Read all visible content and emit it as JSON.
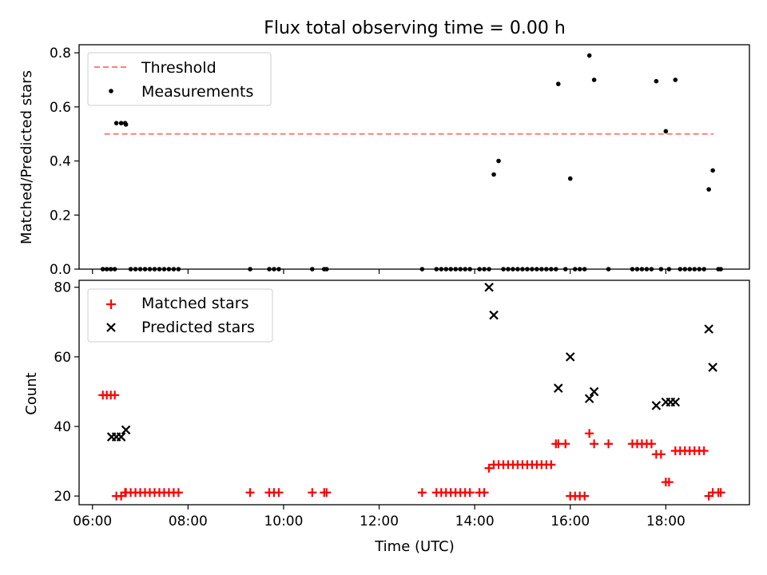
{
  "chart_data": [
    {
      "type": "scatter",
      "title": "Flux total observing time = 0.00 h",
      "xlabel": "",
      "ylabel": "Matched/Predicted stars",
      "xlim_hours": [
        5.72,
        19.75
      ],
      "ylim": [
        0,
        0.83
      ],
      "yticks": [
        "0.0",
        "0.2",
        "0.4",
        "0.6",
        "0.8"
      ],
      "legend_position": "upper-left",
      "threshold": {
        "name": "Threshold",
        "value": 0.5,
        "x_range": [
          6.25,
          19.0
        ],
        "color": "#ff7f7f"
      },
      "series": [
        {
          "name": "Measurements",
          "color": "#000000",
          "x": [
            "06:13",
            "06:18",
            "06:23",
            "06:28",
            "06:30",
            "06:36",
            "06:41",
            "06:42",
            "06:48",
            "06:54",
            "07:00",
            "07:06",
            "07:12",
            "07:18",
            "07:24",
            "07:30",
            "07:36",
            "07:42",
            "07:48",
            "09:18",
            "09:42",
            "09:48",
            "09:54",
            "10:36",
            "10:51",
            "10:54",
            "12:54",
            "13:12",
            "13:18",
            "13:24",
            "13:30",
            "13:36",
            "13:42",
            "13:48",
            "13:54",
            "14:06",
            "14:12",
            "14:18",
            "14:24",
            "14:30",
            "14:36",
            "14:42",
            "14:48",
            "14:54",
            "15:00",
            "15:06",
            "15:12",
            "15:18",
            "15:24",
            "15:30",
            "15:36",
            "15:42",
            "15:45",
            "15:54",
            "16:00",
            "16:06",
            "16:12",
            "16:18",
            "16:24",
            "16:30",
            "16:48",
            "17:18",
            "17:24",
            "17:30",
            "17:36",
            "17:42",
            "17:48",
            "17:54",
            "18:00",
            "18:04",
            "18:12",
            "18:18",
            "18:24",
            "18:30",
            "18:36",
            "18:42",
            "18:48",
            "18:54",
            "18:59",
            "19:06",
            "19:09"
          ],
          "y": [
            0,
            0,
            0,
            0,
            0.54,
            0.54,
            0.54,
            0.535,
            0,
            0,
            0,
            0,
            0,
            0,
            0,
            0,
            0,
            0,
            0,
            0,
            0,
            0,
            0,
            0,
            0,
            0,
            0,
            0,
            0,
            0,
            0,
            0,
            0,
            0,
            0,
            0,
            0,
            0,
            0.35,
            0.4,
            0,
            0,
            0,
            0,
            0,
            0,
            0,
            0,
            0,
            0,
            0,
            0,
            0.685,
            0,
            0.335,
            0,
            0,
            0,
            0.79,
            0.7,
            0,
            0,
            0,
            0,
            0,
            0,
            0.695,
            0,
            0.51,
            0,
            0.7,
            0,
            0,
            0,
            0,
            0,
            0,
            0.295,
            0.365,
            0,
            0
          ]
        }
      ]
    },
    {
      "type": "scatter",
      "title": "",
      "xlabel": "Time (UTC)",
      "ylabel": "Count",
      "xlim_hours": [
        5.72,
        19.75
      ],
      "ylim": [
        17.5,
        82
      ],
      "xticks": [
        "06:00",
        "08:00",
        "10:00",
        "12:00",
        "14:00",
        "16:00",
        "18:00"
      ],
      "yticks": [
        "20",
        "40",
        "60",
        "80"
      ],
      "legend_position": "upper-left",
      "series": [
        {
          "name": "Matched stars",
          "marker": "plus",
          "color": "#ff0000",
          "x": [
            "06:13",
            "06:18",
            "06:23",
            "06:28",
            "06:30",
            "06:36",
            "06:41",
            "06:42",
            "06:48",
            "06:54",
            "07:00",
            "07:06",
            "07:12",
            "07:18",
            "07:24",
            "07:30",
            "07:36",
            "07:42",
            "07:48",
            "09:18",
            "09:42",
            "09:48",
            "09:54",
            "10:36",
            "10:51",
            "10:54",
            "12:54",
            "13:12",
            "13:18",
            "13:24",
            "13:30",
            "13:36",
            "13:42",
            "13:48",
            "13:54",
            "14:06",
            "14:12",
            "14:18",
            "14:24",
            "14:30",
            "14:36",
            "14:42",
            "14:48",
            "14:54",
            "15:00",
            "15:06",
            "15:12",
            "15:18",
            "15:24",
            "15:30",
            "15:36",
            "15:42",
            "15:45",
            "15:54",
            "16:00",
            "16:06",
            "16:12",
            "16:18",
            "16:24",
            "16:30",
            "16:48",
            "17:18",
            "17:24",
            "17:30",
            "17:36",
            "17:42",
            "17:48",
            "17:54",
            "18:00",
            "18:04",
            "18:12",
            "18:18",
            "18:24",
            "18:30",
            "18:36",
            "18:42",
            "18:48",
            "18:54",
            "18:59",
            "19:06",
            "19:09"
          ],
          "y": [
            49,
            49,
            49,
            49,
            20,
            20,
            21,
            21,
            21,
            21,
            21,
            21,
            21,
            21,
            21,
            21,
            21,
            21,
            21,
            21,
            21,
            21,
            21,
            21,
            21,
            21,
            21,
            21,
            21,
            21,
            21,
            21,
            21,
            21,
            21,
            21,
            21,
            28,
            29,
            29,
            29,
            29,
            29,
            29,
            29,
            29,
            29,
            29,
            29,
            29,
            29,
            35,
            35,
            35,
            20,
            20,
            20,
            20,
            38,
            35,
            35,
            35,
            35,
            35,
            35,
            35,
            32,
            32,
            24,
            24,
            33,
            33,
            33,
            33,
            33,
            33,
            33,
            20,
            21,
            21,
            21
          ]
        },
        {
          "name": "Predicted stars",
          "marker": "x",
          "color": "#000000",
          "x": [
            "06:24",
            "06:30",
            "06:36",
            "06:42",
            "14:18",
            "14:24",
            "15:45",
            "16:00",
            "16:24",
            "16:30",
            "17:48",
            "18:00",
            "18:06",
            "18:12",
            "18:54",
            "18:59"
          ],
          "y": [
            37,
            37,
            37,
            39,
            80,
            72,
            51,
            60,
            48,
            50,
            46,
            47,
            47,
            47,
            68,
            57
          ]
        }
      ]
    }
  ]
}
